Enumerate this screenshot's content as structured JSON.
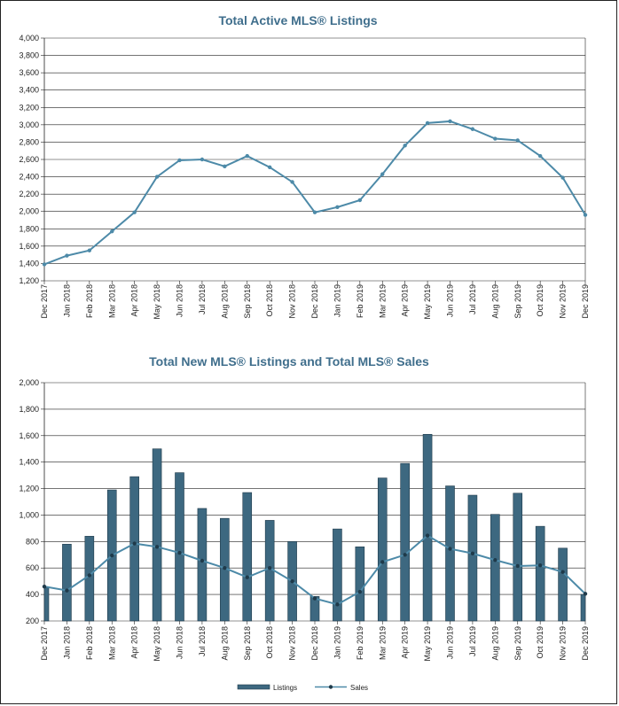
{
  "colors": {
    "line": "#4d8aa8",
    "bar": "#3d6880",
    "bar_edge": "#1f3a4a",
    "grid": "#222222",
    "title": "#3f6e8c"
  },
  "chart_data": [
    {
      "type": "line",
      "title": "Total Active MLS® Listings",
      "ylim": [
        1200,
        4000
      ],
      "yticks": [
        "1,200",
        "1,400",
        "1,600",
        "1,800",
        "2,000",
        "2,200",
        "2,400",
        "2,600",
        "2,800",
        "3,000",
        "3,200",
        "3,400",
        "3,600",
        "3,800",
        "4,000"
      ],
      "categories": [
        "Dec 2017",
        "Jan 2018",
        "Feb 2018",
        "Mar 2018",
        "Apr 2018",
        "May 2018",
        "Jun 2018",
        "Jul 2018",
        "Aug 2018",
        "Sep 2018",
        "Oct 2018",
        "Nov 2018",
        "Dec 2018",
        "Jan 2019",
        "Feb 2019",
        "Mar 2019",
        "Apr 2019",
        "May 2019",
        "Jun 2019",
        "Jul 2019",
        "Aug 2019",
        "Sep 2019",
        "Oct 2019",
        "Nov 2019",
        "Dec 2019"
      ],
      "values": [
        1390,
        1490,
        1550,
        1770,
        1990,
        2400,
        2590,
        2600,
        2520,
        2640,
        2510,
        2340,
        1990,
        2050,
        2130,
        2430,
        2760,
        3020,
        3040,
        2950,
        2840,
        2820,
        2640,
        2390,
        1960
      ]
    },
    {
      "type": "bar",
      "title": "Total New MLS® Listings and Total MLS® Sales",
      "ylim": [
        200,
        2000
      ],
      "yticks": [
        "200",
        "400",
        "600",
        "800",
        "1,000",
        "1,200",
        "1,400",
        "1,600",
        "1,800",
        "2,000"
      ],
      "categories": [
        "Dec 2017",
        "Jan 2018",
        "Feb 2018",
        "Mar 2018",
        "Apr 2018",
        "May 2018",
        "Jun 2018",
        "Jul 2018",
        "Aug 2018",
        "Sep 2018",
        "Oct 2018",
        "Nov 2018",
        "Dec 2018",
        "Jan 2019",
        "Feb 2019",
        "Mar 2019",
        "Apr 2019",
        "May 2019",
        "Jun 2019",
        "Jul 2019",
        "Aug 2019",
        "Sep 2019",
        "Oct 2019",
        "Nov 2019",
        "Dec 2019"
      ],
      "series": [
        {
          "name": "Listings",
          "type": "bar",
          "values": [
            450,
            780,
            840,
            1190,
            1290,
            1500,
            1320,
            1050,
            975,
            1170,
            960,
            800,
            385,
            895,
            760,
            1280,
            1390,
            1610,
            1220,
            1150,
            1005,
            1165,
            915,
            750,
            400
          ]
        },
        {
          "name": "Sales",
          "type": "line",
          "values": [
            460,
            430,
            545,
            695,
            785,
            760,
            715,
            655,
            600,
            530,
            600,
            500,
            370,
            325,
            420,
            645,
            700,
            845,
            745,
            710,
            660,
            615,
            620,
            570,
            405
          ]
        }
      ],
      "legend": "bottom-center"
    }
  ]
}
